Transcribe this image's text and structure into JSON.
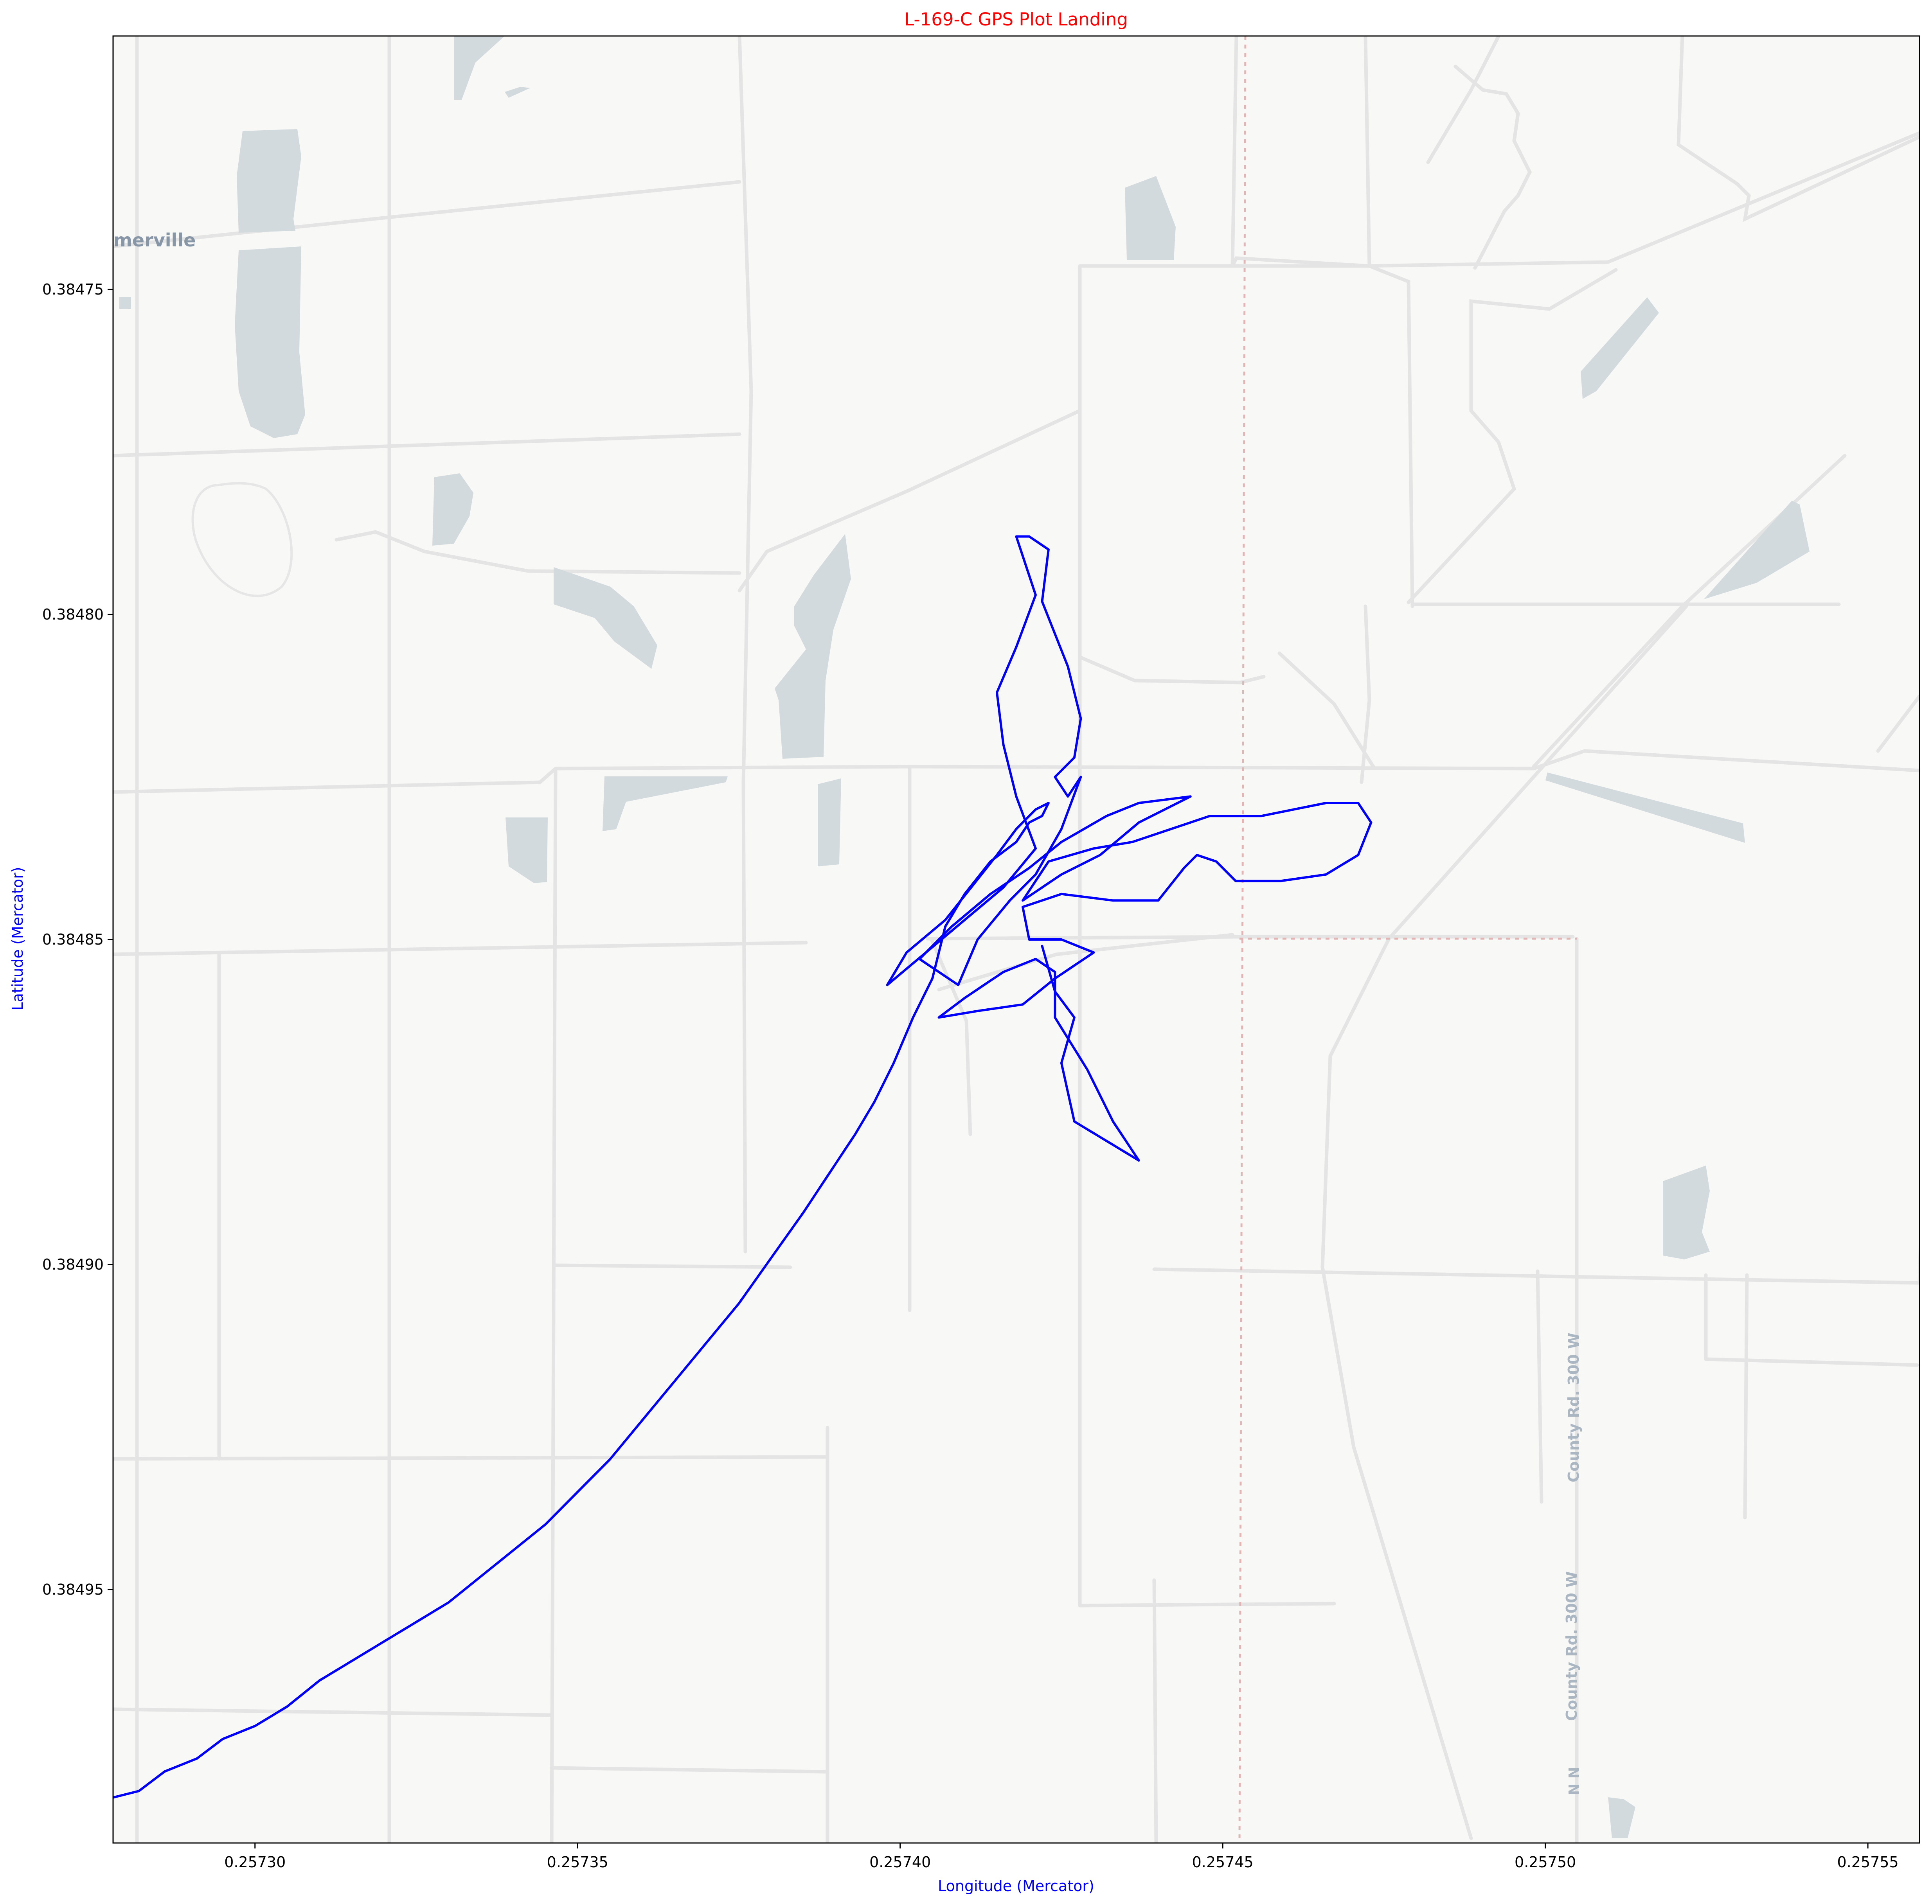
{
  "chart_data": {
    "type": "line",
    "title": "L-169-C GPS Plot Landing",
    "xlabel": "Longitude (Mercator)",
    "ylabel": "Latitude (Mercator)",
    "xlim": [
      0.257278,
      0.257558
    ],
    "ylim": [
      0.384711,
      0.384989
    ],
    "y_inverted": true,
    "xticks": [
      {
        "value": 0.2573,
        "label": "0.25730"
      },
      {
        "value": 0.25735,
        "label": "0.25735"
      },
      {
        "value": 0.2574,
        "label": "0.25740"
      },
      {
        "value": 0.25745,
        "label": "0.25745"
      },
      {
        "value": 0.2575,
        "label": "0.25750"
      },
      {
        "value": 0.25755,
        "label": "0.25755"
      }
    ],
    "yticks": [
      {
        "value": 0.38475,
        "label": "0.38475"
      },
      {
        "value": 0.3848,
        "label": "0.38480"
      },
      {
        "value": 0.38485,
        "label": "0.38485"
      },
      {
        "value": 0.3849,
        "label": "0.38490"
      },
      {
        "value": 0.38495,
        "label": "0.38495"
      }
    ],
    "grid": false,
    "legend": "none",
    "basemap_labels": [
      "merville",
      "County Rd. 300 W",
      "County Rd. 300 W",
      "N N"
    ],
    "colors": {
      "line": "#0000ff",
      "title": "#ff0000",
      "axis_labels": "#0000ff"
    },
    "series": [
      {
        "values_note": "track points as [longitude, latitude]",
        "points": [
          [
            0.257278,
            0.384982
          ],
          [
            0.257282,
            0.384981
          ],
          [
            0.257286,
            0.384978
          ],
          [
            0.257291,
            0.384976
          ],
          [
            0.257295,
            0.384973
          ],
          [
            0.2573,
            0.384971
          ],
          [
            0.257305,
            0.384968
          ],
          [
            0.25731,
            0.384964
          ],
          [
            0.257315,
            0.384961
          ],
          [
            0.25732,
            0.384958
          ],
          [
            0.257325,
            0.384955
          ],
          [
            0.25733,
            0.384952
          ],
          [
            0.257335,
            0.384948
          ],
          [
            0.25734,
            0.384944
          ],
          [
            0.257345,
            0.38494
          ],
          [
            0.25735,
            0.384935
          ],
          [
            0.257355,
            0.38493
          ],
          [
            0.25736,
            0.384924
          ],
          [
            0.257365,
            0.384918
          ],
          [
            0.25737,
            0.384912
          ],
          [
            0.257375,
            0.384906
          ],
          [
            0.25738,
            0.384899
          ],
          [
            0.257385,
            0.384892
          ],
          [
            0.257389,
            0.384886
          ],
          [
            0.257393,
            0.38488
          ],
          [
            0.257396,
            0.384875
          ],
          [
            0.257399,
            0.384869
          ],
          [
            0.257402,
            0.384862
          ],
          [
            0.257405,
            0.384856
          ],
          [
            0.257407,
            0.384848
          ],
          [
            0.25741,
            0.384843
          ],
          [
            0.257414,
            0.384838
          ],
          [
            0.257418,
            0.384835
          ],
          [
            0.25742,
            0.384832
          ],
          [
            0.257422,
            0.384831
          ],
          [
            0.257423,
            0.384829
          ],
          [
            0.257421,
            0.38483
          ],
          [
            0.257418,
            0.384833
          ],
          [
            0.257415,
            0.384837
          ],
          [
            0.257411,
            0.384842
          ],
          [
            0.257407,
            0.384847
          ],
          [
            0.257401,
            0.384852
          ],
          [
            0.257398,
            0.384857
          ],
          [
            0.257404,
            0.384852
          ],
          [
            0.25741,
            0.384847
          ],
          [
            0.257416,
            0.384842
          ],
          [
            0.257421,
            0.384836
          ],
          [
            0.257418,
            0.384828
          ],
          [
            0.257416,
            0.38482
          ],
          [
            0.257415,
            0.384812
          ],
          [
            0.257418,
            0.384805
          ],
          [
            0.257421,
            0.384797
          ],
          [
            0.257419,
            0.384791
          ],
          [
            0.257418,
            0.384788
          ],
          [
            0.25742,
            0.384788
          ],
          [
            0.257423,
            0.38479
          ],
          [
            0.257422,
            0.384798
          ],
          [
            0.257426,
            0.384808
          ],
          [
            0.257428,
            0.384816
          ],
          [
            0.257427,
            0.384822
          ],
          [
            0.257424,
            0.384825
          ],
          [
            0.257426,
            0.384828
          ],
          [
            0.257428,
            0.384825
          ],
          [
            0.257425,
            0.384833
          ],
          [
            0.257421,
            0.38484
          ],
          [
            0.257417,
            0.384844
          ],
          [
            0.257412,
            0.38485
          ],
          [
            0.257409,
            0.384857
          ],
          [
            0.257403,
            0.384853
          ],
          [
            0.257408,
            0.384848
          ],
          [
            0.257414,
            0.384843
          ],
          [
            0.25742,
            0.384839
          ],
          [
            0.257425,
            0.384835
          ],
          [
            0.257432,
            0.384831
          ],
          [
            0.257437,
            0.384829
          ],
          [
            0.257445,
            0.384828
          ],
          [
            0.257437,
            0.384832
          ],
          [
            0.257431,
            0.384837
          ],
          [
            0.257425,
            0.38484
          ],
          [
            0.257419,
            0.384844
          ],
          [
            0.257423,
            0.384838
          ],
          [
            0.25743,
            0.384836
          ],
          [
            0.257436,
            0.384835
          ],
          [
            0.257442,
            0.384833
          ],
          [
            0.257448,
            0.384831
          ],
          [
            0.257456,
            0.384831
          ],
          [
            0.257461,
            0.38483
          ],
          [
            0.257466,
            0.384829
          ],
          [
            0.257471,
            0.384829
          ],
          [
            0.257473,
            0.384832
          ],
          [
            0.257471,
            0.384837
          ],
          [
            0.257466,
            0.38484
          ],
          [
            0.257459,
            0.384841
          ],
          [
            0.257452,
            0.384841
          ],
          [
            0.257449,
            0.384838
          ],
          [
            0.257446,
            0.384837
          ],
          [
            0.257444,
            0.384839
          ],
          [
            0.25744,
            0.384844
          ],
          [
            0.257433,
            0.384844
          ],
          [
            0.257425,
            0.384843
          ],
          [
            0.257419,
            0.384845
          ],
          [
            0.25742,
            0.38485
          ],
          [
            0.257425,
            0.38485
          ],
          [
            0.25743,
            0.384852
          ],
          [
            0.257424,
            0.384856
          ],
          [
            0.257419,
            0.38486
          ],
          [
            0.257412,
            0.384861
          ],
          [
            0.257406,
            0.384862
          ],
          [
            0.25741,
            0.384859
          ],
          [
            0.257416,
            0.384855
          ],
          [
            0.257421,
            0.384853
          ],
          [
            0.257424,
            0.384855
          ],
          [
            0.257424,
            0.384862
          ],
          [
            0.257429,
            0.38487
          ],
          [
            0.257433,
            0.384878
          ],
          [
            0.257437,
            0.384884
          ],
          [
            0.257427,
            0.384878
          ],
          [
            0.257425,
            0.384869
          ],
          [
            0.257427,
            0.384862
          ],
          [
            0.257424,
            0.384858
          ],
          [
            0.257422,
            0.384851
          ]
        ]
      }
    ]
  }
}
